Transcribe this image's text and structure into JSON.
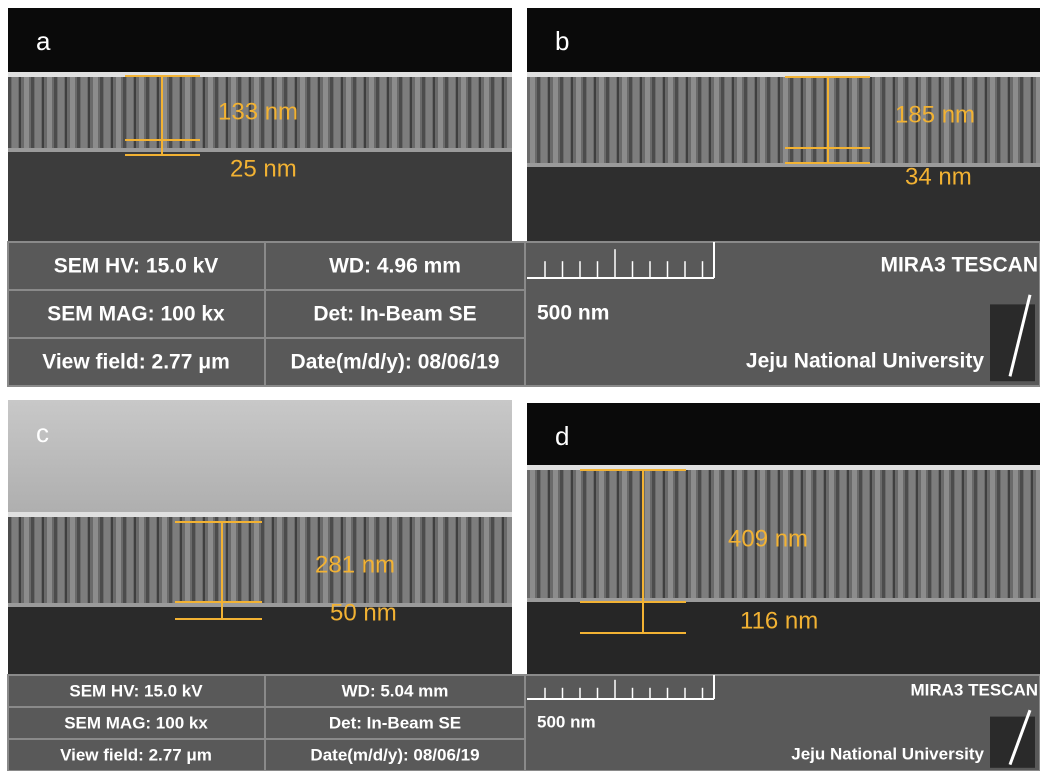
{
  "panels": [
    {
      "label": "a",
      "thickness": "133 nm",
      "interlayer": "25 nm"
    },
    {
      "label": "b",
      "thickness": "185 nm",
      "interlayer": "34 nm"
    },
    {
      "label": "c",
      "thickness": "281 nm",
      "interlayer": "50 nm"
    },
    {
      "label": "d",
      "thickness": "409 nm",
      "interlayer": "116 nm"
    }
  ],
  "info_bars": [
    {
      "hv": "SEM HV: 15.0 kV",
      "wd": "WD: 4.96 mm",
      "mag": "SEM MAG: 100 kx",
      "det": "Det: In-Beam SE",
      "view_field": "View field: 2.77 μm",
      "date": "Date(m/d/y): 08/06/19",
      "scale": "500 nm",
      "brand": "MIRA3 TESCAN",
      "institution": "Jeju National University"
    },
    {
      "hv": "SEM HV: 15.0 kV",
      "wd": "WD: 5.04 mm",
      "mag": "SEM MAG: 100 kx",
      "det": "Det: In-Beam SE",
      "view_field": "View field: 2.77 μm",
      "date": "Date(m/d/y): 08/06/19",
      "scale": "500 nm",
      "brand": "MIRA3 TESCAN",
      "institution": "Jeju National University"
    }
  ]
}
